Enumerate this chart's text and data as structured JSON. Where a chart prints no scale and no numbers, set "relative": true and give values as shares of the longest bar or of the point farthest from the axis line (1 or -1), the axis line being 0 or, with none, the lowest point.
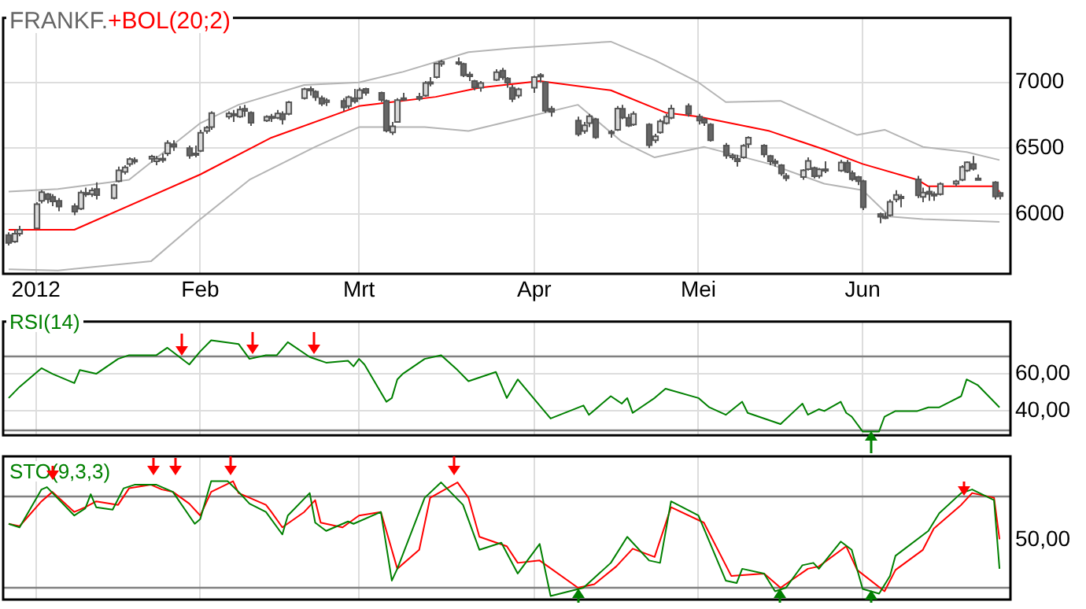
{
  "chart_data": [
    {
      "type": "candlestick",
      "title": "FRANKF.",
      "legend": "top left",
      "grid": true,
      "marker": "none",
      "line_style": "solid",
      "x": [
        "2011-12-28",
        "2011-12-29",
        "2011-12-30",
        "2012-01-02",
        "2012-01-03",
        "2012-01-04",
        "2012-01-05",
        "2012-01-06",
        "2012-01-09",
        "2012-01-10",
        "2012-01-11",
        "2012-01-12",
        "2012-01-13",
        "2012-01-16",
        "2012-01-17",
        "2012-01-18",
        "2012-01-19",
        "2012-01-20",
        "2012-01-23",
        "2012-01-24",
        "2012-01-25",
        "2012-01-26",
        "2012-01-27",
        "2012-01-30",
        "2012-01-31",
        "2012-02-01",
        "2012-02-02",
        "2012-02-03",
        "2012-02-06",
        "2012-02-07",
        "2012-02-08",
        "2012-02-09",
        "2012-02-10",
        "2012-02-13",
        "2012-02-14",
        "2012-02-15",
        "2012-02-16",
        "2012-02-17",
        "2012-02-20",
        "2012-02-21",
        "2012-02-22",
        "2012-02-23",
        "2012-02-24",
        "2012-02-27",
        "2012-02-28",
        "2012-02-29",
        "2012-03-01",
        "2012-03-02",
        "2012-03-05",
        "2012-03-06",
        "2012-03-07",
        "2012-03-08",
        "2012-03-09",
        "2012-03-12",
        "2012-03-13",
        "2012-03-14",
        "2012-03-15",
        "2012-03-16",
        "2012-03-19",
        "2012-03-20",
        "2012-03-21",
        "2012-03-22",
        "2012-03-23",
        "2012-03-26",
        "2012-03-27",
        "2012-03-28",
        "2012-03-29",
        "2012-03-30",
        "2012-04-02",
        "2012-04-03",
        "2012-04-04",
        "2012-04-05",
        "2012-04-10",
        "2012-04-11",
        "2012-04-12",
        "2012-04-13",
        "2012-04-16",
        "2012-04-17",
        "2012-04-18",
        "2012-04-19",
        "2012-04-20",
        "2012-04-23",
        "2012-04-24",
        "2012-04-25",
        "2012-04-26",
        "2012-04-27",
        "2012-04-30",
        "2012-05-02",
        "2012-05-03",
        "2012-05-04",
        "2012-05-07",
        "2012-05-08",
        "2012-05-09",
        "2012-05-10",
        "2012-05-11",
        "2012-05-14",
        "2012-05-15",
        "2012-05-16",
        "2012-05-17",
        "2012-05-18",
        "2012-05-21",
        "2012-05-22",
        "2012-05-23",
        "2012-05-24",
        "2012-05-25",
        "2012-05-28",
        "2012-05-29",
        "2012-05-30",
        "2012-05-31",
        "2012-06-01",
        "2012-06-04",
        "2012-06-05",
        "2012-06-06",
        "2012-06-07",
        "2012-06-08",
        "2012-06-11",
        "2012-06-12",
        "2012-06-13",
        "2012-06-14",
        "2012-06-15",
        "2012-06-18",
        "2012-06-19",
        "2012-06-20",
        "2012-06-21",
        "2012-06-22",
        "2012-06-25",
        "2012-06-26"
      ],
      "ohlc": [
        [
          5840,
          5860,
          5760,
          5780
        ],
        [
          5790,
          5880,
          5780,
          5850
        ],
        [
          5850,
          5910,
          5830,
          5880
        ],
        [
          5890,
          6090,
          5890,
          6075
        ],
        [
          6100,
          6180,
          6080,
          6166
        ],
        [
          6150,
          6160,
          6080,
          6111
        ],
        [
          6130,
          6150,
          6060,
          6095
        ],
        [
          6100,
          6120,
          6020,
          6057
        ],
        [
          6060,
          6080,
          5990,
          6017
        ],
        [
          6040,
          6180,
          6030,
          6163
        ],
        [
          6160,
          6200,
          6130,
          6152
        ],
        [
          6150,
          6200,
          6130,
          6179
        ],
        [
          6190,
          6240,
          6110,
          6143
        ],
        [
          6120,
          6230,
          6110,
          6220
        ],
        [
          6250,
          6360,
          6240,
          6332
        ],
        [
          6320,
          6370,
          6300,
          6354
        ],
        [
          6380,
          6430,
          6360,
          6416
        ],
        [
          6410,
          6430,
          6380,
          6404
        ],
        [
          6420,
          6450,
          6390,
          6436
        ],
        [
          6400,
          6440,
          6370,
          6419
        ],
        [
          6410,
          6460,
          6390,
          6421
        ],
        [
          6460,
          6560,
          6440,
          6539
        ],
        [
          6530,
          6560,
          6480,
          6511
        ],
        [
          6500,
          6520,
          6420,
          6444
        ],
        [
          6460,
          6520,
          6430,
          6458
        ],
        [
          6480,
          6640,
          6470,
          6617
        ],
        [
          6630,
          6670,
          6610,
          6656
        ],
        [
          6660,
          6780,
          6640,
          6766
        ],
        [
          6740,
          6780,
          6720,
          6764
        ],
        [
          6760,
          6790,
          6700,
          6754
        ],
        [
          6740,
          6820,
          6730,
          6793
        ],
        [
          6800,
          6830,
          6740,
          6783
        ],
        [
          6770,
          6780,
          6670,
          6693
        ],
        [
          6710,
          6750,
          6700,
          6738
        ],
        [
          6740,
          6760,
          6700,
          6728
        ],
        [
          6730,
          6790,
          6720,
          6763
        ],
        [
          6760,
          6780,
          6680,
          6719
        ],
        [
          6760,
          6860,
          6750,
          6849
        ],
        [
          6880,
          6960,
          6870,
          6949
        ],
        [
          6950,
          6970,
          6900,
          6944
        ],
        [
          6930,
          6940,
          6860,
          6888
        ],
        [
          6880,
          6900,
          6820,
          6838
        ],
        [
          6850,
          6880,
          6820,
          6864
        ],
        [
          6860,
          6880,
          6780,
          6810
        ],
        [
          6820,
          6900,
          6800,
          6887
        ],
        [
          6880,
          6950,
          6840,
          6856
        ],
        [
          6880,
          6960,
          6870,
          6941
        ],
        [
          6950,
          6960,
          6900,
          6921
        ],
        [
          6920,
          6930,
          6850,
          6867
        ],
        [
          6860,
          6870,
          6620,
          6633
        ],
        [
          6620,
          6700,
          6600,
          6667
        ],
        [
          6700,
          6880,
          6700,
          6866
        ],
        [
          6870,
          6920,
          6860,
          6880
        ],
        [
          6890,
          6920,
          6860,
          6876
        ],
        [
          6900,
          7010,
          6890,
          6995
        ],
        [
          7000,
          7040,
          6970,
          7002
        ],
        [
          7040,
          7150,
          7030,
          7144
        ],
        [
          7140,
          7170,
          7120,
          7157
        ],
        [
          7150,
          7190,
          7130,
          7154
        ],
        [
          7140,
          7150,
          7040,
          7054
        ],
        [
          7060,
          7080,
          7010,
          7046
        ],
        [
          7010,
          7020,
          6940,
          6963
        ],
        [
          6960,
          7010,
          6930,
          6996
        ],
        [
          7020,
          7100,
          7010,
          7078
        ],
        [
          7090,
          7110,
          7020,
          7038
        ],
        [
          7030,
          7040,
          6960,
          6998
        ],
        [
          6960,
          6980,
          6850,
          6875
        ],
        [
          6900,
          6960,
          6880,
          6947
        ],
        [
          6960,
          7050,
          6920,
          7040
        ],
        [
          7050,
          7070,
          7000,
          7056
        ],
        [
          7000,
          7010,
          6770,
          6784
        ],
        [
          6800,
          6820,
          6740,
          6775
        ],
        [
          6710,
          6740,
          6590,
          6607
        ],
        [
          6630,
          6700,
          6610,
          6674
        ],
        [
          6690,
          6760,
          6660,
          6743
        ],
        [
          6720,
          6730,
          6570,
          6583
        ],
        [
          6620,
          6640,
          6580,
          6625
        ],
        [
          6640,
          6820,
          6630,
          6801
        ],
        [
          6800,
          6830,
          6720,
          6732
        ],
        [
          6730,
          6760,
          6660,
          6671
        ],
        [
          6680,
          6780,
          6670,
          6760
        ],
        [
          6680,
          6690,
          6500,
          6523
        ],
        [
          6560,
          6610,
          6540,
          6590
        ],
        [
          6620,
          6720,
          6610,
          6704
        ],
        [
          6690,
          6760,
          6680,
          6739
        ],
        [
          6730,
          6830,
          6720,
          6801
        ],
        [
          6820,
          6840,
          6740,
          6761
        ],
        [
          6740,
          6760,
          6680,
          6710
        ],
        [
          6720,
          6730,
          6670,
          6694
        ],
        [
          6680,
          6690,
          6550,
          6561
        ],
        [
          6520,
          6540,
          6420,
          6444
        ],
        [
          6430,
          6460,
          6410,
          6444
        ],
        [
          6420,
          6450,
          6360,
          6401
        ],
        [
          6430,
          6530,
          6420,
          6518
        ],
        [
          6530,
          6590,
          6500,
          6579
        ],
        [
          6520,
          6530,
          6430,
          6452
        ],
        [
          6440,
          6450,
          6370,
          6401
        ],
        [
          6400,
          6420,
          6360,
          6385
        ],
        [
          6370,
          6380,
          6290,
          6308
        ],
        [
          6290,
          6310,
          6250,
          6271
        ],
        [
          6280,
          6340,
          6260,
          6332
        ],
        [
          6340,
          6430,
          6330,
          6404
        ],
        [
          6350,
          6360,
          6270,
          6287
        ],
        [
          6290,
          6350,
          6270,
          6339
        ],
        [
          6330,
          6400,
          6310,
          6340
        ],
        [
          6330,
          6410,
          6320,
          6391
        ],
        [
          6390,
          6410,
          6310,
          6320
        ],
        [
          6310,
          6330,
          6250,
          6264
        ],
        [
          6280,
          6290,
          6220,
          6250
        ],
        [
          6250,
          6260,
          6030,
          6050
        ],
        [
          6000,
          6010,
          5930,
          5978
        ],
        [
          5980,
          6010,
          5960,
          5969
        ],
        [
          5990,
          6110,
          5980,
          6093
        ],
        [
          6110,
          6180,
          6090,
          6144
        ],
        [
          6120,
          6150,
          6050,
          6131
        ],
        [
          6262,
          6290,
          6120,
          6141
        ],
        [
          6130,
          6200,
          6090,
          6162
        ],
        [
          6170,
          6210,
          6100,
          6152
        ],
        [
          6150,
          6170,
          6100,
          6138
        ],
        [
          6150,
          6240,
          6140,
          6229
        ],
        [
          6230,
          6260,
          6210,
          6248
        ],
        [
          6260,
          6370,
          6250,
          6357
        ],
        [
          6330,
          6400,
          6320,
          6393
        ],
        [
          6380,
          6440,
          6330,
          6343
        ],
        [
          6270,
          6300,
          6260,
          6262
        ],
        [
          6240,
          6250,
          6110,
          6132
        ],
        [
          6160,
          6170,
          6110,
          6136
        ]
      ],
      "series": [
        {
          "name": "+BOL(20;2)",
          "type": "line",
          "color": "#ff0000",
          "x": [
            "2011-12-28",
            "2012-01-09",
            "2012-02-01",
            "2012-02-14",
            "2012-03-01",
            "2012-03-15",
            "2012-03-23",
            "2012-04-03",
            "2012-04-16",
            "2012-04-26",
            "2012-05-02",
            "2012-05-15",
            "2012-05-25",
            "2012-06-01",
            "2012-06-11",
            "2012-06-13",
            "2012-06-25",
            "2012-06-26"
          ],
          "values": [
            5880,
            5880,
            6300,
            6580,
            6820,
            6890,
            6960,
            7010,
            6940,
            6770,
            6740,
            6630,
            6490,
            6380,
            6260,
            6210,
            6210,
            6170
          ]
        },
        {
          "type": "line",
          "color": "#b4b4b4",
          "x": [
            "2011-12-28",
            "2012-01-06",
            "2012-01-19",
            "2012-02-01",
            "2012-02-08",
            "2012-02-20",
            "2012-03-01",
            "2012-03-09",
            "2012-03-21",
            "2012-03-29",
            "2012-04-16",
            "2012-04-24",
            "2012-05-02",
            "2012-05-07",
            "2012-05-17",
            "2012-05-31",
            "2012-06-05",
            "2012-06-12",
            "2012-06-20",
            "2012-06-26"
          ],
          "values": [
            6170,
            6190,
            6260,
            6690,
            6830,
            6980,
            7000,
            7080,
            7230,
            7260,
            7310,
            7170,
            7000,
            6850,
            6860,
            6600,
            6640,
            6510,
            6470,
            6410
          ]
        },
        {
          "type": "line",
          "color": "#b4b4b4",
          "x": [
            "2011-12-28",
            "2012-01-06",
            "2012-01-23",
            "2012-02-01",
            "2012-02-10",
            "2012-02-22",
            "2012-03-01",
            "2012-03-13",
            "2012-03-21",
            "2012-03-30",
            "2012-04-10",
            "2012-04-18",
            "2012-04-24",
            "2012-05-03",
            "2012-05-15",
            "2012-05-25",
            "2012-06-01",
            "2012-06-06",
            "2012-06-12",
            "2012-06-26"
          ],
          "values": [
            5580,
            5570,
            5640,
            5960,
            6260,
            6510,
            6660,
            6660,
            6630,
            6720,
            6830,
            6550,
            6430,
            6510,
            6380,
            6230,
            6180,
            5980,
            5960,
            5940
          ]
        }
      ],
      "xlim": [
        "2011-12-27",
        "2012-06-28"
      ],
      "xticks": [
        {
          "value": "2012-01-02",
          "label": "2012"
        },
        {
          "value": "2012-02-01",
          "label": "Feb"
        },
        {
          "value": "2012-03-01",
          "label": "Mrt"
        },
        {
          "value": "2012-04-02",
          "label": "Apr"
        },
        {
          "value": "2012-05-02",
          "label": "Mei"
        },
        {
          "value": "2012-06-01",
          "label": "Jun"
        }
      ],
      "ylim": [
        5545,
        7490
      ],
      "yticks": [
        6000,
        6500,
        7000
      ]
    },
    {
      "type": "line",
      "legend": "top left",
      "grid": true,
      "marker": "none",
      "line_style": "solid",
      "tick_labels": "y",
      "series": [
        {
          "name": "RSI(14)",
          "color": "#008000",
          "x": [
            "2011-12-28",
            "2011-12-30",
            "2012-01-03",
            "2012-01-05",
            "2012-01-09",
            "2012-01-10",
            "2012-01-13",
            "2012-01-17",
            "2012-01-19",
            "2012-01-24",
            "2012-01-26",
            "2012-01-30",
            "2012-02-01",
            "2012-02-03",
            "2012-02-08",
            "2012-02-10",
            "2012-02-13",
            "2012-02-15",
            "2012-02-17",
            "2012-02-21",
            "2012-02-24",
            "2012-02-28",
            "2012-02-29",
            "2012-03-01",
            "2012-03-02",
            "2012-03-06",
            "2012-03-07",
            "2012-03-08",
            "2012-03-09",
            "2012-03-13",
            "2012-03-16",
            "2012-03-19",
            "2012-03-21",
            "2012-03-26",
            "2012-03-28",
            "2012-03-30",
            "2012-04-03",
            "2012-04-05",
            "2012-04-11",
            "2012-04-12",
            "2012-04-16",
            "2012-04-18",
            "2012-04-19",
            "2012-04-20",
            "2012-04-24",
            "2012-04-26",
            "2012-05-02",
            "2012-05-04",
            "2012-05-07",
            "2012-05-10",
            "2012-05-11",
            "2012-05-17",
            "2012-05-21",
            "2012-05-22",
            "2012-05-24",
            "2012-05-25",
            "2012-05-28",
            "2012-05-29",
            "2012-05-30",
            "2012-06-01",
            "2012-06-04",
            "2012-06-05",
            "2012-06-07",
            "2012-06-11",
            "2012-06-13",
            "2012-06-15",
            "2012-06-19",
            "2012-06-20",
            "2012-06-22",
            "2012-06-26"
          ],
          "values": [
            47,
            53,
            63,
            60,
            55,
            62,
            60,
            68,
            70,
            70,
            74,
            65,
            72,
            78,
            76,
            68,
            70,
            70,
            77,
            69,
            66,
            67,
            64,
            68,
            65,
            45,
            47,
            57,
            60,
            68,
            70,
            62,
            56,
            61,
            47,
            57,
            43,
            36,
            43,
            38,
            48,
            44,
            47,
            39,
            47,
            52,
            47,
            42,
            38,
            45,
            39,
            33,
            44,
            38,
            41,
            40,
            45,
            39,
            37,
            29,
            29,
            37,
            40,
            40,
            42,
            42,
            48,
            57,
            54,
            42
          ]
        }
      ],
      "ref_lines": [
        {
          "axis": "y",
          "value": 70,
          "color": "#808080"
        },
        {
          "axis": "y",
          "value": 30,
          "color": "#808080"
        }
      ],
      "xlim": [
        "2011-12-27",
        "2012-06-28"
      ],
      "xticks": [
        {
          "value": "2012-01-02",
          "label": null
        },
        {
          "value": "2012-02-01",
          "label": null
        },
        {
          "value": "2012-03-01",
          "label": null
        },
        {
          "value": "2012-04-02",
          "label": null
        },
        {
          "value": "2012-05-02",
          "label": null
        },
        {
          "value": "2012-06-01",
          "label": null
        }
      ],
      "ylim": [
        27,
        88
      ],
      "yticks": [
        {
          "value": 40,
          "label": "40,00"
        },
        {
          "value": 60,
          "label": "60,00"
        }
      ]
    },
    {
      "type": "line",
      "legend": "top left",
      "grid": true,
      "marker": "none",
      "line_style": "solid",
      "tick_labels": "y",
      "relative": true,
      "annotations": [
        "50,00"
      ],
      "series": [
        {
          "name": "STO(9,3,3)",
          "color": "#008000",
          "x": [
            "2011-12-28",
            "2011-12-30",
            "2012-01-03",
            "2012-01-04",
            "2012-01-09",
            "2012-01-11",
            "2012-01-12",
            "2012-01-13",
            "2012-01-16",
            "2012-01-18",
            "2012-01-20",
            "2012-01-24",
            "2012-01-26",
            "2012-01-27",
            "2012-01-31",
            "2012-02-01",
            "2012-02-03",
            "2012-02-06",
            "2012-02-08",
            "2012-02-10",
            "2012-02-13",
            "2012-02-16",
            "2012-02-17",
            "2012-02-21",
            "2012-02-22",
            "2012-02-24",
            "2012-02-28",
            "2012-02-29",
            "2012-03-05",
            "2012-03-07",
            "2012-03-08",
            "2012-03-13",
            "2012-03-16",
            "2012-03-20",
            "2012-03-23",
            "2012-03-27",
            "2012-03-30",
            "2012-04-03",
            "2012-04-05",
            "2012-04-11",
            "2012-04-16",
            "2012-04-19",
            "2012-04-23",
            "2012-04-25",
            "2012-04-27",
            "2012-05-02",
            "2012-05-07",
            "2012-05-09",
            "2012-05-10",
            "2012-05-14",
            "2012-05-16",
            "2012-05-18",
            "2012-05-21",
            "2012-05-23",
            "2012-05-24",
            "2012-05-28",
            "2012-05-30",
            "2012-06-01",
            "2012-06-04",
            "2012-06-06",
            "2012-06-07",
            "2012-06-13",
            "2012-06-15",
            "2012-06-19",
            "2012-06-21",
            "2012-06-25",
            "2012-06-26"
          ],
          "values": [
            0.64,
            0.61,
            0.93,
            0.95,
            0.71,
            0.77,
            0.89,
            0.78,
            0.76,
            0.94,
            0.97,
            0.97,
            0.93,
            0.91,
            0.64,
            0.68,
            1,
            1,
            0.91,
            0.81,
            0.74,
            0.55,
            0.71,
            0.9,
            0.65,
            0.58,
            0.66,
            0.64,
            0.74,
            0.16,
            0.26,
            0.86,
            0.99,
            0.8,
            0.42,
            0.48,
            0.22,
            0.47,
            0.03,
            0.1,
            0.31,
            0.53,
            0.33,
            0.31,
            0.83,
            0.71,
            0.16,
            0.14,
            0.26,
            0.22,
            0.07,
            0.1,
            0.29,
            0.31,
            0.26,
            0.49,
            0.42,
            0.09,
            0.05,
            0.2,
            0.37,
            0.58,
            0.73,
            0.9,
            0.93,
            0.84,
            0.26
          ]
        },
        {
          "color": "#ff0000",
          "x": [
            "2011-12-28",
            "2011-12-30",
            "2012-01-03",
            "2012-01-05",
            "2012-01-09",
            "2012-01-11",
            "2012-01-13",
            "2012-01-17",
            "2012-01-19",
            "2012-01-23",
            "2012-01-25",
            "2012-01-27",
            "2012-01-30",
            "2012-02-01",
            "2012-02-03",
            "2012-02-07",
            "2012-02-08",
            "2012-02-13",
            "2012-02-14",
            "2012-02-16",
            "2012-02-20",
            "2012-02-22",
            "2012-02-23",
            "2012-02-27",
            "2012-03-01",
            "2012-03-05",
            "2012-03-08",
            "2012-03-12",
            "2012-03-14",
            "2012-03-19",
            "2012-03-21",
            "2012-03-23",
            "2012-03-28",
            "2012-03-30",
            "2012-04-03",
            "2012-04-10",
            "2012-04-13",
            "2012-04-17",
            "2012-04-20",
            "2012-04-24",
            "2012-04-27",
            "2012-05-03",
            "2012-05-08",
            "2012-05-14",
            "2012-05-17",
            "2012-05-22",
            "2012-05-24",
            "2012-05-29",
            "2012-05-31",
            "2012-06-05",
            "2012-06-07",
            "2012-06-12",
            "2012-06-14",
            "2012-06-19",
            "2012-06-21",
            "2012-06-25",
            "2012-06-26"
          ],
          "values": [
            0.64,
            0.62,
            0.83,
            0.91,
            0.74,
            0.78,
            0.83,
            0.8,
            0.94,
            0.97,
            0.93,
            0.91,
            0.81,
            0.71,
            0.91,
            1,
            0.9,
            0.8,
            0.74,
            0.61,
            0.74,
            0.84,
            0.65,
            0.61,
            0.71,
            0.74,
            0.26,
            0.42,
            0.86,
            0.99,
            0.86,
            0.53,
            0.45,
            0.31,
            0.33,
            0.1,
            0.13,
            0.28,
            0.43,
            0.36,
            0.78,
            0.65,
            0.2,
            0.22,
            0.1,
            0.26,
            0.28,
            0.45,
            0.25,
            0.07,
            0.25,
            0.42,
            0.6,
            0.8,
            0.9,
            0.86,
            0.51
          ]
        }
      ],
      "ref_lines": [
        {
          "axis": "y",
          "value": 0.88,
          "color": "#808080"
        },
        {
          "axis": "y",
          "value": 0.1,
          "color": "#808080"
        }
      ],
      "xlim": [
        "2011-12-27",
        "2012-06-28"
      ],
      "xticks": [
        {
          "value": "2012-01-02",
          "label": null
        },
        {
          "value": "2012-02-01",
          "label": null
        },
        {
          "value": "2012-03-01",
          "label": null
        },
        {
          "value": "2012-04-02",
          "label": null
        },
        {
          "value": "2012-05-02",
          "label": null
        },
        {
          "value": "2012-06-01",
          "label": null
        }
      ]
    }
  ]
}
